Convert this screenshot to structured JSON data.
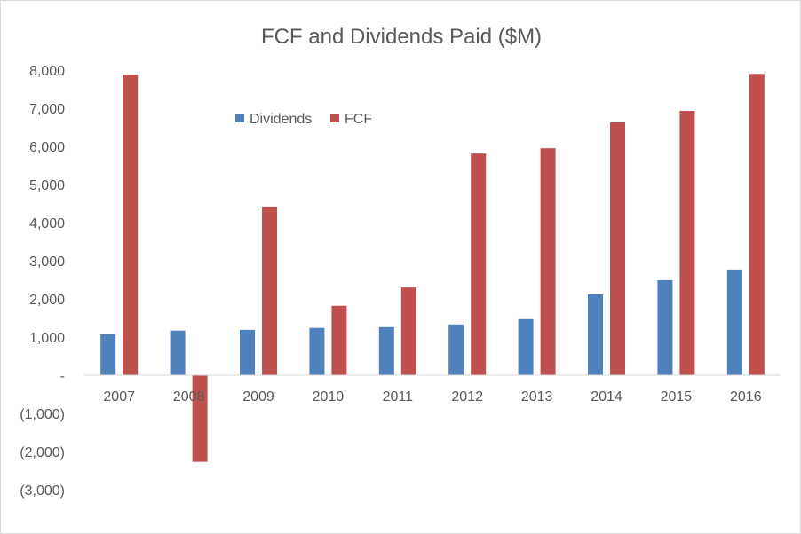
{
  "chart_data": {
    "type": "bar",
    "title": "FCF and Dividends Paid ($M)",
    "xlabel": "",
    "ylabel": "",
    "categories": [
      "2007",
      "2008",
      "2009",
      "2010",
      "2011",
      "2012",
      "2013",
      "2014",
      "2015",
      "2016"
    ],
    "series": [
      {
        "name": "Dividends",
        "color": "#4f81bd",
        "values": [
          1080,
          1170,
          1190,
          1240,
          1260,
          1330,
          1470,
          2120,
          2490,
          2770
        ]
      },
      {
        "name": "FCF",
        "color": "#c0504d",
        "values": [
          7880,
          -2270,
          4420,
          1820,
          2300,
          5810,
          5950,
          6630,
          6930,
          7900
        ]
      }
    ],
    "ylim": [
      -3000,
      8000
    ],
    "yticks": [
      8000,
      7000,
      6000,
      5000,
      4000,
      3000,
      2000,
      1000,
      0,
      -1000,
      -2000,
      -3000
    ],
    "ytick_labels": [
      "8,000",
      "7,000",
      "6,000",
      "5,000",
      "4,000",
      "3,000",
      "2,000",
      "1,000",
      "-",
      "(1,000)",
      "(2,000)",
      "(3,000)"
    ],
    "grid": false,
    "legend_position": "top-center",
    "axis_color": "#d9d9d9",
    "text_color": "#595959"
  }
}
